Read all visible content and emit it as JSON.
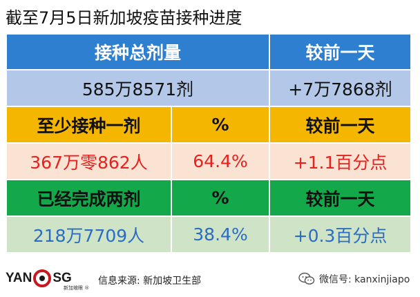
{
  "title": "截至7月5日新加坡疫苗接种进度",
  "table": {
    "rows": [
      [
        "接种总剂量",
        "较前一天"
      ],
      [
        "585万8571剂",
        "+7万7868剂"
      ],
      [
        "至少接种一剂",
        "%",
        "较前一天"
      ],
      [
        "367万零862人",
        "64.4%",
        "+1.1百分点"
      ],
      [
        "已经完成两剂",
        "%",
        "较前一天"
      ],
      [
        "218万7709人",
        "38.4%",
        "+0.3百分点"
      ]
    ]
  },
  "footer": {
    "logo_text_left": "YAN",
    "logo_text_right": "SG",
    "logo_sub": "新加坡眼 ®",
    "source": "信息来源:  新加坡卫生部",
    "wechat": "微信号: kanxinjiapo"
  },
  "icons": [
    "logo-mark-icon",
    "wechat-icon"
  ],
  "colors": {
    "blue_header": "#2f7fd1",
    "blue_value": "#b3c8e8",
    "yellow_header": "#f5b600",
    "peach_value": "#fbe3d4",
    "red_text": "#e8201e",
    "green_header": "#13a84a",
    "light_green_value": "#cfe4c6",
    "blue_text": "#2a6cc3"
  }
}
